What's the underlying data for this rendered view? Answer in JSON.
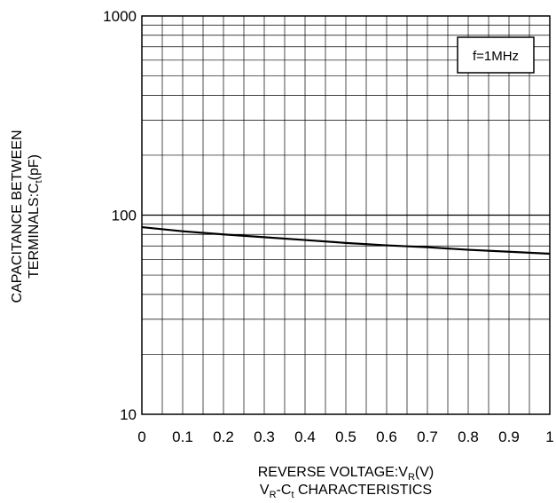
{
  "chart_data": {
    "type": "line",
    "title": "",
    "xlabel": {
      "main": "REVERSE VOLTAGE:V",
      "sub": "R",
      "tail": "(V)"
    },
    "caption": {
      "p1": "V",
      "s1": "R",
      "p2": "-C",
      "s2": "t",
      "p3": " CHARACTERISTICS"
    },
    "ylabel": {
      "line1": "CAPACITANCE BETWEEN",
      "line2_main": "TERMINALS:C",
      "line2_sub": "t",
      "line2_tail": "(pF)"
    },
    "annotation": "f=1MHz",
    "x_scale": "linear",
    "y_scale": "log",
    "xlim": [
      0,
      1
    ],
    "ylim": [
      10,
      1000
    ],
    "x_ticks": [
      0,
      0.1,
      0.2,
      0.3,
      0.4,
      0.5,
      0.6,
      0.7,
      0.8,
      0.9,
      1
    ],
    "x_tick_labels": [
      "0",
      "0.1",
      "0.2",
      "0.3",
      "0.4",
      "0.5",
      "0.6",
      "0.7",
      "0.8",
      "0.9",
      "1"
    ],
    "y_tick_labels": [
      {
        "value": 10,
        "label": "10"
      },
      {
        "value": 100,
        "label": "100"
      },
      {
        "value": 1000,
        "label": "1000"
      }
    ],
    "grid": {
      "x_minor_step": 0.05,
      "y": "log-minor"
    },
    "series": [
      {
        "x": [
          0,
          0.1,
          0.2,
          0.3,
          0.4,
          0.5,
          0.6,
          0.7,
          0.8,
          0.9,
          1.0
        ],
        "y": [
          87,
          83,
          80,
          77.5,
          75,
          72.5,
          70.5,
          69,
          67,
          65.5,
          64
        ]
      }
    ]
  }
}
